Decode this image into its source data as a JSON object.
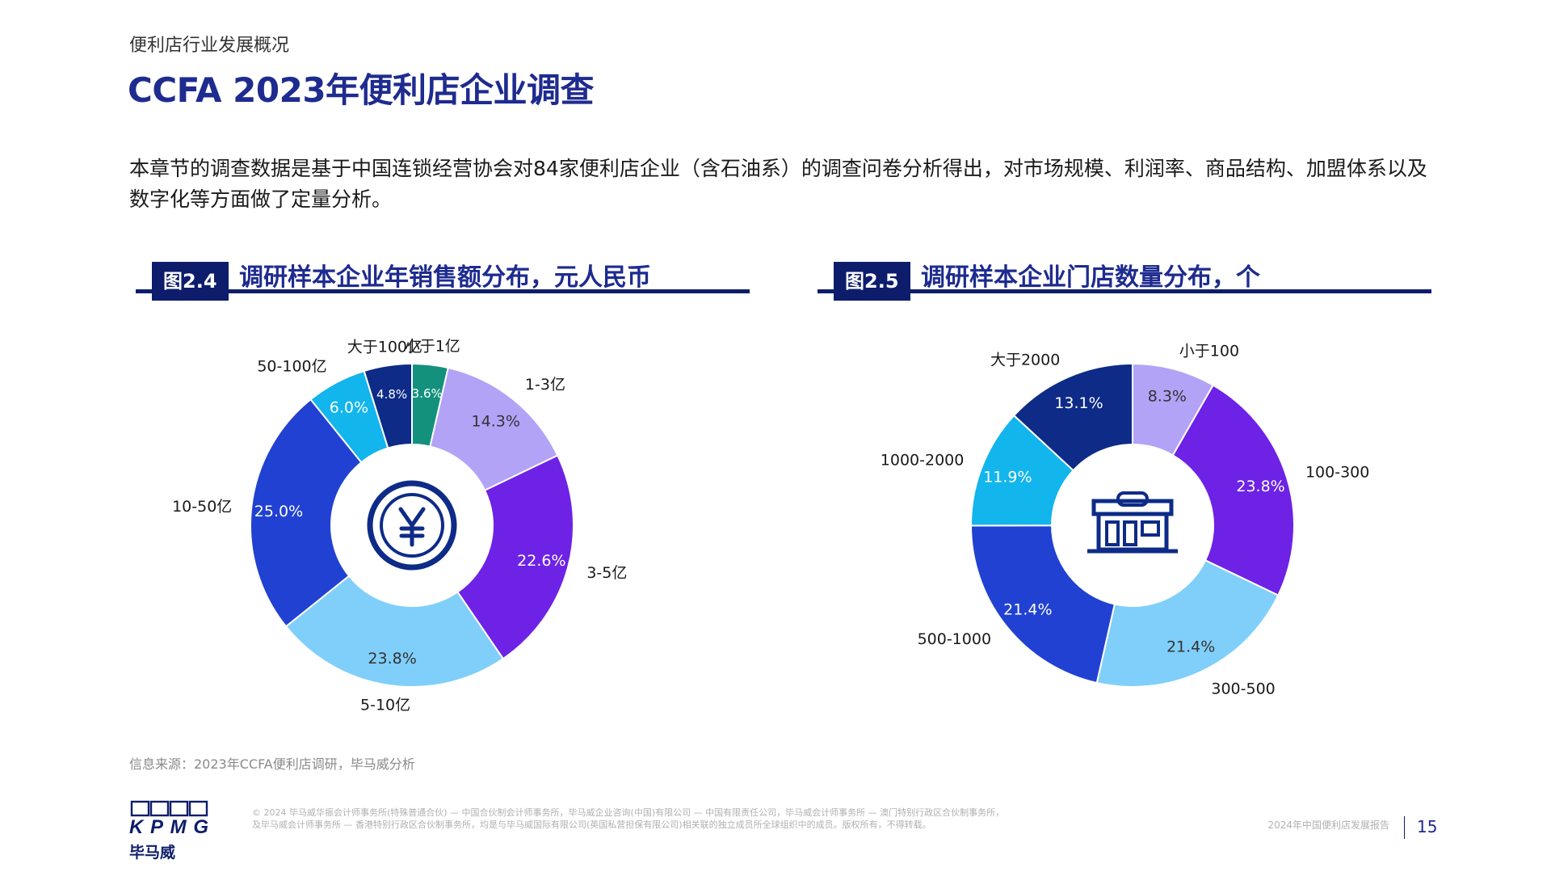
{
  "header": {
    "section": "便利店行业发展概况",
    "title": "CCFA 2023年便利店企业调查"
  },
  "intro": "本章节的调查数据是基于中国连锁经营协会对84家便利店企业（含石油系）的调查问卷分析得出，对市场规模、利润率、商品结构、加盟体系以及数字化等方面做了定量分析。",
  "colors": {
    "teal": "#13917d",
    "lavender": "#b2a3f7",
    "violet": "#6d22e6",
    "sky": "#80cffa",
    "royal": "#2141d2",
    "cyan": "#12b5ec",
    "navy": "#0d2b87"
  },
  "chart_data": [
    {
      "type": "pie",
      "figure_tag": "图2.4",
      "title": "调研样本企业年销售额分布，元人民币",
      "center_icon": "yuan-coin-icon",
      "categories": [
        "小于1亿",
        "1-3亿",
        "3-5亿",
        "5-10亿",
        "10-50亿",
        "50-100亿",
        "大于100亿"
      ],
      "values": [
        3.6,
        14.3,
        22.6,
        23.8,
        25.0,
        6.0,
        4.8
      ],
      "value_labels": [
        "3.6%",
        "14.3%",
        "22.6%",
        "23.8%",
        "25.0%",
        "6.0%",
        "4.8%"
      ],
      "colors": [
        "#13917d",
        "#b2a3f7",
        "#6d22e6",
        "#80cffa",
        "#2141d2",
        "#12b5ec",
        "#0d2b87"
      ]
    },
    {
      "type": "pie",
      "figure_tag": "图2.5",
      "title": "调研样本企业门店数量分布，个",
      "center_icon": "store-icon",
      "categories": [
        "小于100",
        "100-300",
        "300-500",
        "500-1000",
        "1000-2000",
        "大于2000"
      ],
      "values": [
        8.3,
        23.8,
        21.4,
        21.4,
        11.9,
        13.1
      ],
      "value_labels": [
        "8.3%",
        "23.8%",
        "21.4%",
        "21.4%",
        "11.9%",
        "13.1%"
      ],
      "colors": [
        "#b2a3f7",
        "#6d22e6",
        "#80cffa",
        "#2141d2",
        "#12b5ec",
        "#0d2b87"
      ]
    }
  ],
  "source": "信息来源：2023年CCFA便利店调研，毕马威分析",
  "footer": {
    "logo_text": "KPMG",
    "logo_cn": "毕马威",
    "legal_line1": "© 2024 毕马威华振会计师事务所(特殊普通合伙) — 中国合伙制会计师事务所，毕马威企业咨询(中国)有限公司 — 中国有限责任公司，毕马威会计师事务所 — 澳门特别行政区合伙制事务所，",
    "legal_line2": "及毕马威会计师事务所 — 香港特别行政区合伙制事务所，均是与毕马威国际有限公司(英国私营担保有限公司)相关联的独立成员所全球组织中的成员。版权所有，不得转载。",
    "report_name": "2024年中国便利店发展报告",
    "page_number": "15"
  }
}
